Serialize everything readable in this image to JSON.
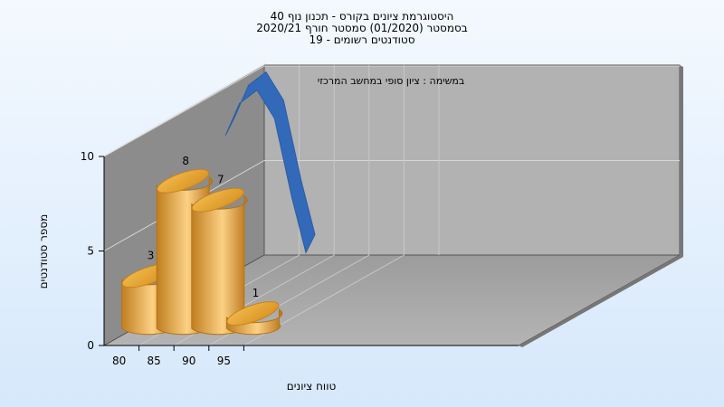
{
  "chart_data": {
    "type": "bar",
    "title_lines": [
      "היסטוגרמת ציונים בקורס - תכנון נוף 40",
      "בסמסטר  (01/2020)  סמסטר חורף  2020/21",
      "סטודנטים רשומים - 19"
    ],
    "subtitle": "במשימה : ציון סופי במחשב המרכזי",
    "xlabel": "טווח ציונים",
    "ylabel": "מספר סטודנטים",
    "x_ticks": [
      "80",
      "85",
      "90",
      "95"
    ],
    "y_ticks": [
      "0",
      "5",
      "10"
    ],
    "ylim": [
      0,
      10
    ],
    "grid": true,
    "bar_color": "#e3a33c",
    "curve_color": "#3269b8",
    "bars": [
      {
        "x": 80,
        "value": 3,
        "label": "3"
      },
      {
        "x": 85,
        "value": 8,
        "label": "8"
      },
      {
        "x": 90,
        "value": 7,
        "label": "7"
      },
      {
        "x": 95,
        "value": 1,
        "label": "1"
      }
    ],
    "curve": [
      {
        "x": 88.5,
        "y": 9.2
      },
      {
        "x": 90.5,
        "y": 10.9
      },
      {
        "x": 93,
        "y": 11.6
      },
      {
        "x": 95.5,
        "y": 10.1
      },
      {
        "x": 98,
        "y": 5.9
      },
      {
        "x": 100,
        "y": 3.0
      }
    ]
  }
}
